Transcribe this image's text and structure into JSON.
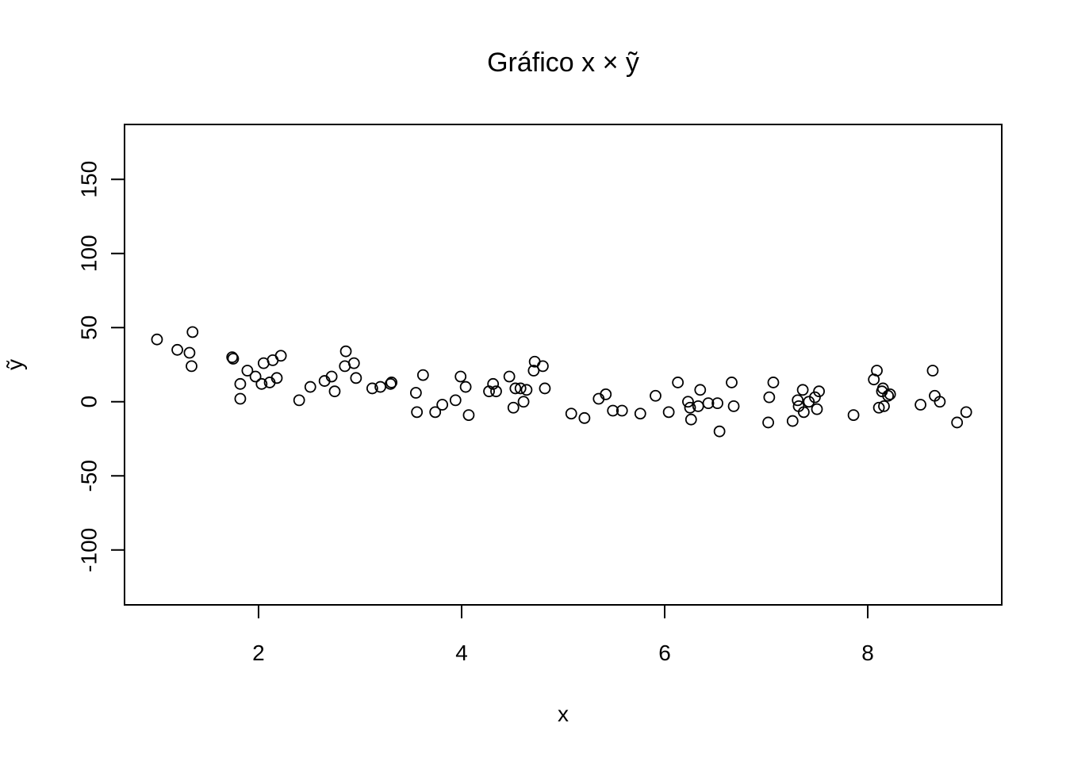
{
  "chart_data": {
    "type": "scatter",
    "title": "Gráfico x × ỹ",
    "xlabel": "x",
    "ylabel": "ỹ",
    "xlim": [
      0.68,
      9.32
    ],
    "ylim": [
      -137,
      187
    ],
    "x_ticks": [
      2,
      4,
      6,
      8
    ],
    "x_tick_labels": [
      "2",
      "4",
      "6",
      "8"
    ],
    "y_ticks": [
      -100,
      -50,
      0,
      50,
      100,
      150
    ],
    "y_tick_labels": [
      "-100",
      "-50",
      "0",
      "50",
      "100",
      "150"
    ],
    "grid": false,
    "legend": "none",
    "marker": "open-circle",
    "colors": {
      "marker": "#000000",
      "frame": "#000000",
      "background": "#ffffff"
    },
    "points": [
      {
        "x": 1.0,
        "y": 42
      },
      {
        "x": 1.2,
        "y": 35
      },
      {
        "x": 1.32,
        "y": 33
      },
      {
        "x": 1.35,
        "y": 47
      },
      {
        "x": 1.34,
        "y": 24
      },
      {
        "x": 1.74,
        "y": 30
      },
      {
        "x": 1.75,
        "y": 29
      },
      {
        "x": 1.82,
        "y": 12
      },
      {
        "x": 1.82,
        "y": 2
      },
      {
        "x": 1.89,
        "y": 21
      },
      {
        "x": 1.97,
        "y": 17
      },
      {
        "x": 2.03,
        "y": 12
      },
      {
        "x": 2.05,
        "y": 26
      },
      {
        "x": 2.11,
        "y": 13
      },
      {
        "x": 2.14,
        "y": 28
      },
      {
        "x": 2.18,
        "y": 16
      },
      {
        "x": 2.22,
        "y": 31
      },
      {
        "x": 2.4,
        "y": 1
      },
      {
        "x": 2.51,
        "y": 10
      },
      {
        "x": 2.65,
        "y": 14
      },
      {
        "x": 2.72,
        "y": 17
      },
      {
        "x": 2.75,
        "y": 7
      },
      {
        "x": 2.85,
        "y": 24
      },
      {
        "x": 2.86,
        "y": 34
      },
      {
        "x": 2.94,
        "y": 26
      },
      {
        "x": 2.96,
        "y": 16
      },
      {
        "x": 3.12,
        "y": 9
      },
      {
        "x": 3.2,
        "y": 10
      },
      {
        "x": 3.3,
        "y": 12
      },
      {
        "x": 3.31,
        "y": 13
      },
      {
        "x": 3.55,
        "y": 6
      },
      {
        "x": 3.56,
        "y": -7
      },
      {
        "x": 3.62,
        "y": 18
      },
      {
        "x": 3.74,
        "y": -7
      },
      {
        "x": 3.81,
        "y": -2
      },
      {
        "x": 3.94,
        "y": 1
      },
      {
        "x": 3.99,
        "y": 17
      },
      {
        "x": 4.04,
        "y": 10
      },
      {
        "x": 4.07,
        "y": -9
      },
      {
        "x": 4.27,
        "y": 7
      },
      {
        "x": 4.31,
        "y": 12
      },
      {
        "x": 4.34,
        "y": 7
      },
      {
        "x": 4.47,
        "y": 17
      },
      {
        "x": 4.51,
        "y": -4
      },
      {
        "x": 4.53,
        "y": 9
      },
      {
        "x": 4.58,
        "y": 9
      },
      {
        "x": 4.61,
        "y": 0
      },
      {
        "x": 4.64,
        "y": 8
      },
      {
        "x": 4.71,
        "y": 21
      },
      {
        "x": 4.72,
        "y": 27
      },
      {
        "x": 4.8,
        "y": 24
      },
      {
        "x": 4.82,
        "y": 9
      },
      {
        "x": 5.08,
        "y": -8
      },
      {
        "x": 5.21,
        "y": -11
      },
      {
        "x": 5.35,
        "y": 2
      },
      {
        "x": 5.42,
        "y": 5
      },
      {
        "x": 5.49,
        "y": -6
      },
      {
        "x": 5.58,
        "y": -6
      },
      {
        "x": 5.76,
        "y": -8
      },
      {
        "x": 5.91,
        "y": 4
      },
      {
        "x": 6.04,
        "y": -7
      },
      {
        "x": 6.13,
        "y": 13
      },
      {
        "x": 6.23,
        "y": 0
      },
      {
        "x": 6.25,
        "y": -4
      },
      {
        "x": 6.26,
        "y": -12
      },
      {
        "x": 6.33,
        "y": -3
      },
      {
        "x": 6.35,
        "y": 8
      },
      {
        "x": 6.43,
        "y": -1
      },
      {
        "x": 6.52,
        "y": -1
      },
      {
        "x": 6.54,
        "y": -20
      },
      {
        "x": 6.66,
        "y": 13
      },
      {
        "x": 6.68,
        "y": -3
      },
      {
        "x": 7.02,
        "y": -14
      },
      {
        "x": 7.03,
        "y": 3
      },
      {
        "x": 7.07,
        "y": 13
      },
      {
        "x": 7.26,
        "y": -13
      },
      {
        "x": 7.31,
        "y": 1
      },
      {
        "x": 7.32,
        "y": -3
      },
      {
        "x": 7.36,
        "y": 8
      },
      {
        "x": 7.37,
        "y": -7
      },
      {
        "x": 7.42,
        "y": 0
      },
      {
        "x": 7.48,
        "y": 3
      },
      {
        "x": 7.5,
        "y": -5
      },
      {
        "x": 7.52,
        "y": 7
      },
      {
        "x": 7.86,
        "y": -9
      },
      {
        "x": 8.06,
        "y": 15
      },
      {
        "x": 8.09,
        "y": 21
      },
      {
        "x": 8.11,
        "y": -4
      },
      {
        "x": 8.14,
        "y": 7
      },
      {
        "x": 8.15,
        "y": 9
      },
      {
        "x": 8.16,
        "y": -3
      },
      {
        "x": 8.2,
        "y": 4
      },
      {
        "x": 8.22,
        "y": 5
      },
      {
        "x": 8.52,
        "y": -2
      },
      {
        "x": 8.64,
        "y": 21
      },
      {
        "x": 8.66,
        "y": 4
      },
      {
        "x": 8.71,
        "y": 0
      },
      {
        "x": 8.88,
        "y": -14
      },
      {
        "x": 8.97,
        "y": -7
      }
    ]
  }
}
